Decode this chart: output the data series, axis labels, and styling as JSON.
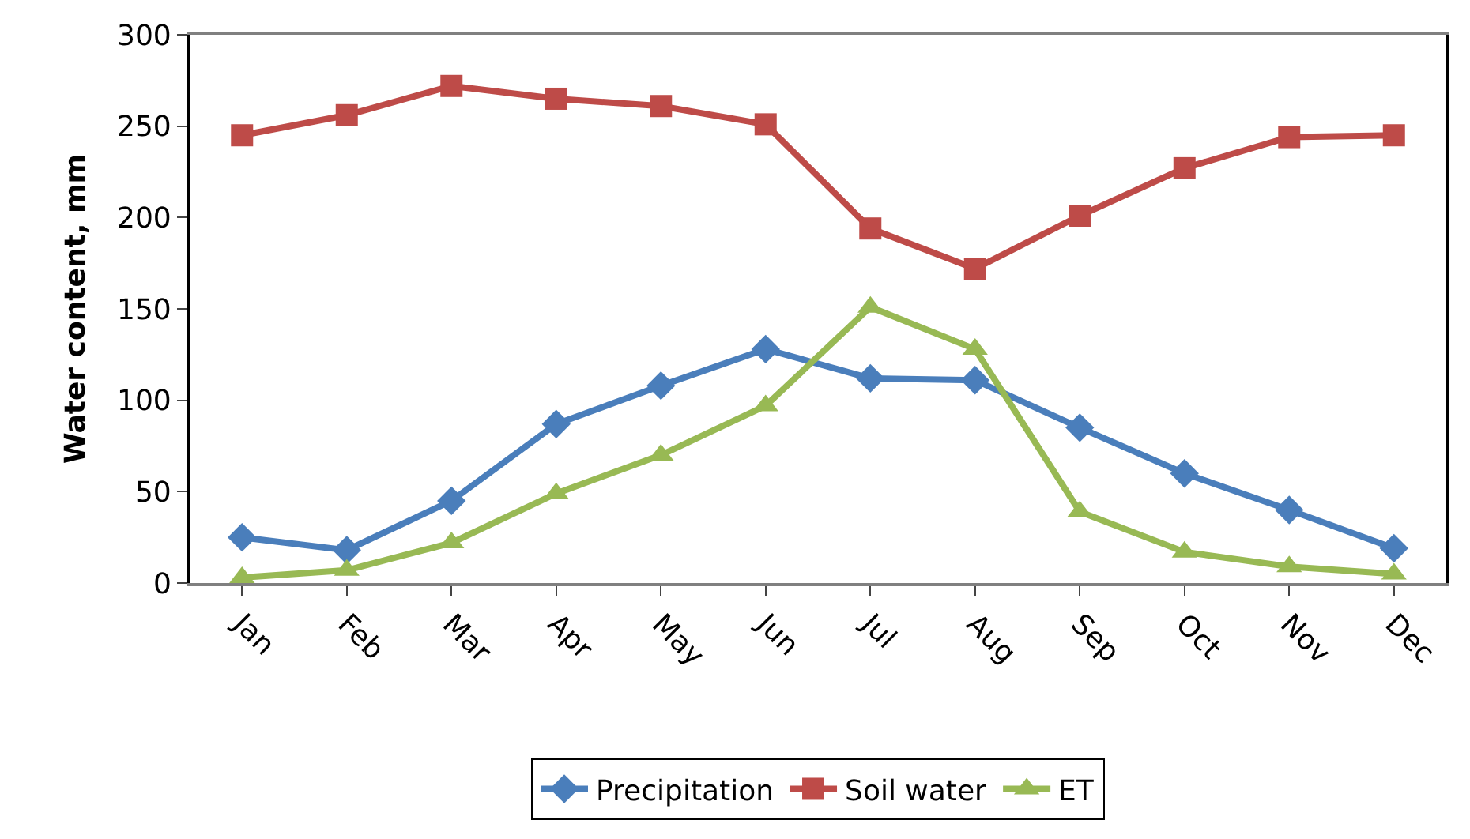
{
  "chart_data": {
    "type": "line",
    "ylabel": "Water content, mm",
    "categories": [
      "Jan",
      "Feb",
      "Mar",
      "Apr",
      "May",
      "Jun",
      "Jul",
      "Aug",
      "Sep",
      "Oct",
      "Nov",
      "Dec"
    ],
    "series": [
      {
        "name": "Precipitation",
        "color": "#4a7ebb",
        "marker": "diamond",
        "values": [
          25,
          18,
          45,
          87,
          108,
          128,
          112,
          111,
          85,
          60,
          40,
          19
        ]
      },
      {
        "name": "Soil water",
        "color": "#be4b48",
        "marker": "square",
        "values": [
          245,
          256,
          272,
          265,
          261,
          251,
          194,
          172,
          201,
          227,
          244,
          245
        ]
      },
      {
        "name": "ET",
        "color": "#98b954",
        "marker": "triangle",
        "values": [
          3,
          7,
          22,
          49,
          70,
          97,
          151,
          128,
          39,
          17,
          9,
          5
        ]
      }
    ],
    "ylim": [
      0,
      300
    ],
    "yticks": [
      0,
      50,
      100,
      150,
      200,
      250,
      300
    ],
    "grid": false,
    "legend": "bottom",
    "line_style": "solid"
  }
}
